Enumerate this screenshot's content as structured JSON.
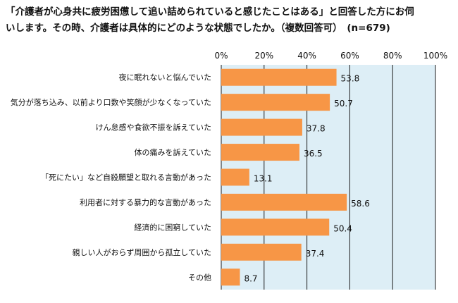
{
  "chart_data": {
    "type": "bar",
    "orientation": "horizontal",
    "title_lines": [
      "「介護者が心身共に疲労困憊して追い詰められていると感じたことはある」と回答した方にお伺",
      "いします。その時、介護者は具体的にどのような状態でしたか。（複数回答可）　(n=679)"
    ],
    "categories": [
      "夜に眠れないと悩んでいた",
      "気分が落ち込み、以前より口数や笑顔が少なくなっていた",
      "けん怠感や食欲不振を訴えていた",
      "体の痛みを訴えていた",
      "「死にたい」など自殺願望と取れる言動があった",
      "利用者に対する暴力的な言動があった",
      "経済的に困窮していた",
      "親しい人がおらず周囲から孤立していた",
      "その他"
    ],
    "values": [
      53.8,
      50.7,
      37.8,
      36.5,
      13.1,
      58.6,
      50.4,
      37.4,
      8.7
    ],
    "value_labels": [
      "53.8",
      "50.7",
      "37.8",
      "36.5",
      "13.1",
      "58.6",
      "50.4",
      "37.4",
      "8.7"
    ],
    "xlim": [
      0,
      100
    ],
    "x_ticks": [
      0,
      20,
      40,
      60,
      80,
      100
    ],
    "x_tick_labels": [
      "0%",
      "20%",
      "40%",
      "60%",
      "80%",
      "100%"
    ],
    "axis_position": "top",
    "grid": true,
    "colors": {
      "bar": "#f79646",
      "plot_background": "#ddeef6",
      "grid": "#1b1b1b"
    }
  }
}
